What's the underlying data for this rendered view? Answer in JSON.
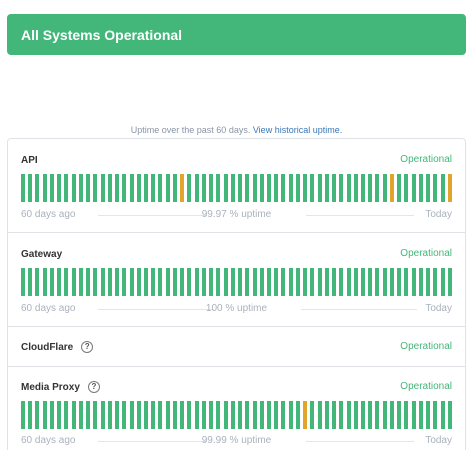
{
  "banner": {
    "text": "All Systems Operational",
    "color": "#43b77a"
  },
  "caption": {
    "text": "Uptime over the past 60 days.",
    "link": "View historical uptime."
  },
  "legend": {
    "left": "60 days ago",
    "right": "Today"
  },
  "colors": {
    "operational": "#43b77a",
    "partial": "#e2a52b"
  },
  "components": [
    {
      "name": "API",
      "status": "Operational",
      "help": false,
      "uptime": "99.97 % uptime",
      "days": 60,
      "incident_days": [
        22,
        51,
        59
      ]
    },
    {
      "name": "Gateway",
      "status": "Operational",
      "help": false,
      "uptime": "100 % uptime",
      "days": 60,
      "incident_days": []
    },
    {
      "name": "CloudFlare",
      "status": "Operational",
      "help": true
    },
    {
      "name": "Media Proxy",
      "status": "Operational",
      "help": true,
      "uptime": "99.99 % uptime",
      "days": 60,
      "incident_days": [
        39
      ]
    }
  ]
}
